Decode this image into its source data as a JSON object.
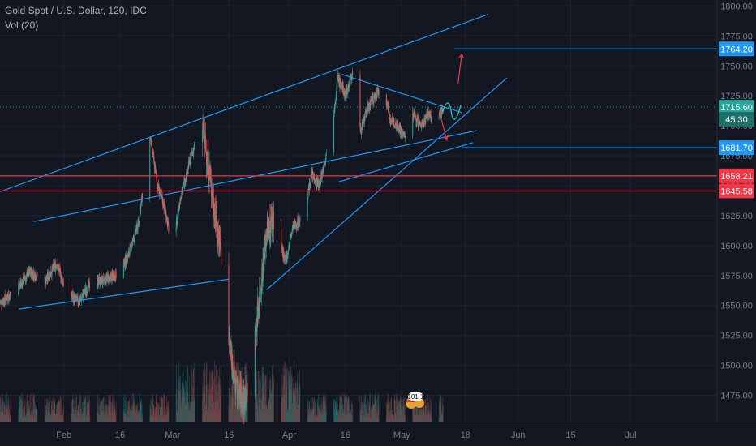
{
  "legend": {
    "symbol_title": "Gold Spot / U.S. Dollar, 120, IDC",
    "volume_label": "Vol (20)"
  },
  "price_labels": [
    {
      "text": "1764.20",
      "price": 1764.2,
      "color": "#2196f3",
      "text_color": "#ffffff"
    },
    {
      "text": "1715.60",
      "price": 1715.6,
      "color": "#26a69a",
      "text_color": "#ffffff"
    },
    {
      "text": "45:30",
      "price": 1705.5,
      "color": "#1f6f69",
      "text_color": "#ffffff"
    },
    {
      "text": "1681.70",
      "price": 1681.7,
      "color": "#2196f3",
      "text_color": "#ffffff"
    },
    {
      "text": "1658.21",
      "price": 1658.21,
      "color": "#f23645",
      "text_color": "#ffffff"
    },
    {
      "text": "1645.58",
      "price": 1645.58,
      "color": "#f23645",
      "text_color": "#ffffff"
    }
  ],
  "badge": {
    "text": "101 1"
  },
  "chart_data": {
    "type": "candlestick",
    "title": "Gold Spot / U.S. Dollar, 120, IDC",
    "y_ticks": [
      1475,
      1500,
      1525,
      1550,
      1575,
      1600,
      1625,
      1650,
      1675,
      1700,
      1725,
      1750,
      1775,
      1800
    ],
    "y_tick_labels": [
      "1475.00",
      "1500.00",
      "1525.00",
      "1550.00",
      "1575.00",
      "1600.00",
      "1625.00",
      "1650.00",
      "1675.00",
      "1700.00",
      "1725.00",
      "1750.00",
      "1775.00",
      "1800.00"
    ],
    "ylim": [
      1453,
      1805
    ],
    "x_ticks": [
      "Feb",
      "16",
      "Mar",
      "16",
      "Apr",
      "16",
      "May",
      "18",
      "Jun",
      "15",
      "Jul"
    ],
    "x_tick_dates": [
      "2020-02-01",
      "2020-02-16",
      "2020-03-01",
      "2020-03-16",
      "2020-04-01",
      "2020-04-16",
      "2020-05-01",
      "2020-05-18",
      "2020-06-01",
      "2020-06-15",
      "2020-07-01"
    ],
    "xlim": [
      "2020-01-15",
      "2020-07-24"
    ],
    "price_path": [
      [
        "2020-01-15",
        1552
      ],
      [
        "2020-01-19",
        1562
      ],
      [
        "2020-01-23",
        1578
      ],
      [
        "2020-01-27",
        1570
      ],
      [
        "2020-01-30",
        1585
      ],
      [
        "2020-02-02",
        1560
      ],
      [
        "2020-02-05",
        1553
      ],
      [
        "2020-02-08",
        1568
      ],
      [
        "2020-02-12",
        1572
      ],
      [
        "2020-02-15",
        1575
      ],
      [
        "2020-02-18",
        1590
      ],
      [
        "2020-02-21",
        1620
      ],
      [
        "2020-02-24",
        1690
      ],
      [
        "2020-02-26",
        1650
      ],
      [
        "2020-02-28",
        1630
      ],
      [
        "2020-03-01",
        1595
      ],
      [
        "2020-03-03",
        1640
      ],
      [
        "2020-03-06",
        1676
      ],
      [
        "2020-03-09",
        1700
      ],
      [
        "2020-03-11",
        1655
      ],
      [
        "2020-03-14",
        1590
      ],
      [
        "2020-03-16",
        1520
      ],
      [
        "2020-03-18",
        1480
      ],
      [
        "2020-03-20",
        1468
      ],
      [
        "2020-03-22",
        1500
      ],
      [
        "2020-03-24",
        1555
      ],
      [
        "2020-03-26",
        1610
      ],
      [
        "2020-03-28",
        1625
      ],
      [
        "2020-03-31",
        1585
      ],
      [
        "2020-04-02",
        1615
      ],
      [
        "2020-04-05",
        1625
      ],
      [
        "2020-04-07",
        1660
      ],
      [
        "2020-04-09",
        1650
      ],
      [
        "2020-04-12",
        1690
      ],
      [
        "2020-04-14",
        1740
      ],
      [
        "2020-04-16",
        1725
      ],
      [
        "2020-04-18",
        1745
      ],
      [
        "2020-04-20",
        1695
      ],
      [
        "2020-04-22",
        1715
      ],
      [
        "2020-04-24",
        1725
      ],
      [
        "2020-04-26",
        1735
      ],
      [
        "2020-04-28",
        1705
      ],
      [
        "2020-04-30",
        1700
      ],
      [
        "2020-05-02",
        1690
      ],
      [
        "2020-05-04",
        1710
      ],
      [
        "2020-05-06",
        1700
      ],
      [
        "2020-05-08",
        1710
      ],
      [
        "2020-05-10",
        1700
      ],
      [
        "2020-05-12",
        1715.6
      ]
    ],
    "volume_max": 100,
    "current_price": 1715.6,
    "support_levels": [
      1658.21,
      1645.58
    ],
    "target_levels": [
      1764.2,
      1681.7
    ],
    "trendlines": [
      {
        "name": "channel-upper",
        "color": "#2196f3",
        "from": [
          "2020-01-15",
          1645
        ],
        "to": [
          "2020-05-24",
          1793
        ]
      },
      {
        "name": "channel-middle",
        "color": "#2196f3",
        "from": [
          "2020-01-24",
          1620
        ],
        "to": [
          "2020-05-21",
          1696
        ]
      },
      {
        "name": "channel-lower",
        "color": "#2196f3",
        "from": [
          "2020-01-20",
          1547
        ],
        "to": [
          "2020-03-16",
          1572
        ]
      },
      {
        "name": "wedge-upper",
        "color": "#2196f3",
        "from": [
          "2020-04-15",
          1743
        ],
        "to": [
          "2020-05-17",
          1711
        ]
      },
      {
        "name": "wedge-lower",
        "color": "#2196f3",
        "from": [
          "2020-03-26",
          1563
        ],
        "to": [
          "2020-05-29",
          1740
        ]
      },
      {
        "name": "wedge-base",
        "color": "#2196f3",
        "from": [
          "2020-04-14",
          1653
        ],
        "to": [
          "2020-05-20",
          1686
        ]
      },
      {
        "name": "target-1764",
        "color": "#2196f3",
        "from": [
          "2020-05-15",
          1764.2
        ],
        "to": [
          "2020-07-24",
          1764.2
        ]
      },
      {
        "name": "target-1681",
        "color": "#2196f3",
        "from": [
          "2020-05-17",
          1681.7
        ],
        "to": [
          "2020-07-24",
          1681.7
        ]
      },
      {
        "name": "support-1658",
        "color": "#f23645",
        "from": [
          "2020-01-15",
          1658.21
        ],
        "to": [
          "2020-07-24",
          1658.21
        ]
      },
      {
        "name": "support-1645",
        "color": "#f23645",
        "from": [
          "2020-01-15",
          1645.58
        ],
        "to": [
          "2020-07-24",
          1645.58
        ]
      }
    ],
    "arrows": [
      {
        "name": "up-arrow",
        "color": "#f23645",
        "from": [
          "2020-05-16",
          1735
        ],
        "to": [
          "2020-05-17",
          1760
        ]
      },
      {
        "name": "down-arrow",
        "color": "#f23645",
        "from": [
          "2020-05-11",
          1712
        ],
        "to": [
          "2020-05-13",
          1688
        ]
      }
    ],
    "current_line_color": "#26a69a",
    "up_color": "#26a69a",
    "down_color": "#ef5350",
    "grid": true
  }
}
